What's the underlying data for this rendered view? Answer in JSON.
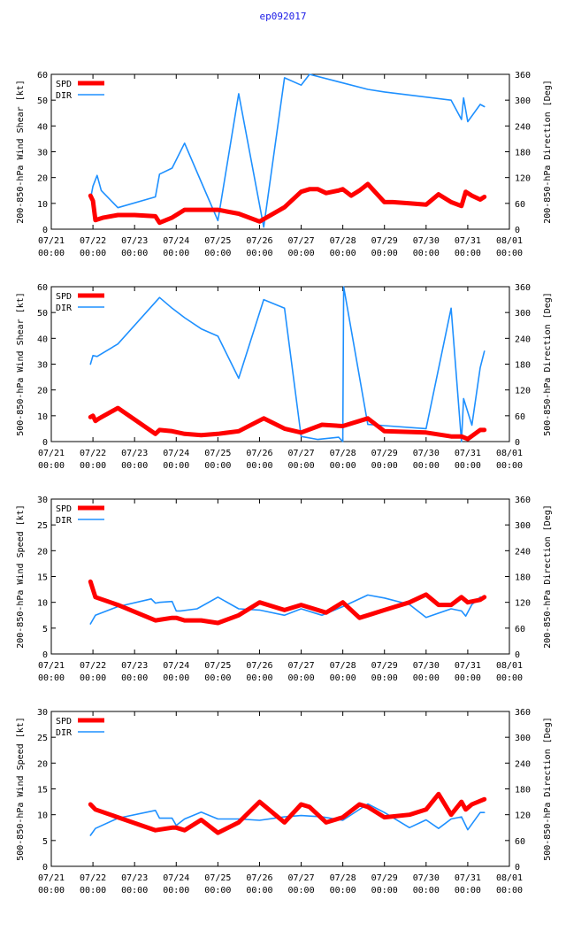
{
  "title": "ep092017",
  "colors": {
    "spd": "#ff0000",
    "dir": "#1e90ff",
    "title": "#1a1ae6",
    "axis": "#000000"
  },
  "chart_data": [
    {
      "type": "line",
      "ylabel": "200-850-hPa Wind Shear [kt]",
      "y2label": "200-850-hPa Direction [Deg]",
      "ylim": [
        0,
        60
      ],
      "yticks": [
        0,
        10,
        20,
        30,
        40,
        50,
        60
      ],
      "y2lim": [
        0,
        360
      ],
      "y2ticks": [
        0,
        60,
        120,
        180,
        240,
        300,
        360
      ],
      "xlim": [
        0,
        11
      ],
      "xticks": [
        {
          "date": "07/21",
          "time": "00:00"
        },
        {
          "date": "07/22",
          "time": "00:00"
        },
        {
          "date": "07/23",
          "time": "00:00"
        },
        {
          "date": "07/24",
          "time": "00:00"
        },
        {
          "date": "07/25",
          "time": "00:00"
        },
        {
          "date": "07/26",
          "time": "00:00"
        },
        {
          "date": "07/27",
          "time": "00:00"
        },
        {
          "date": "07/28",
          "time": "00:00"
        },
        {
          "date": "07/29",
          "time": "00:00"
        },
        {
          "date": "07/30",
          "time": "00:00"
        },
        {
          "date": "07/31",
          "time": "00:00"
        },
        {
          "date": "08/01",
          "time": "00:00"
        }
      ],
      "legend": [
        "SPD",
        "DIR"
      ],
      "series": [
        {
          "name": "SPD",
          "axis": "left",
          "x": [
            0.94,
            1.0,
            1.06,
            1.25,
            1.6,
            2.0,
            2.5,
            2.6,
            2.9,
            3.2,
            3.6,
            4.0,
            4.5,
            5.0,
            5.6,
            6.0,
            6.2,
            6.4,
            6.6,
            6.9,
            7.0,
            7.2,
            7.4,
            7.6,
            8.0,
            8.2,
            8.6,
            9.0,
            9.3,
            9.6,
            9.85,
            9.95,
            10.1,
            10.3,
            10.4
          ],
          "values": [
            13,
            11,
            3.5,
            4.5,
            5.5,
            5.5,
            5,
            2.5,
            4.5,
            7.5,
            7.5,
            7.5,
            6,
            3,
            8.5,
            14.5,
            15.5,
            15.5,
            14,
            15,
            15.5,
            13,
            15,
            17.5,
            10.5,
            10.5,
            10,
            9.5,
            13.5,
            10.5,
            9,
            14.5,
            13,
            11.5,
            12.5
          ]
        },
        {
          "name": "DIR",
          "axis": "right",
          "x": [
            0.94,
            1.0,
            1.1,
            1.2,
            1.6,
            2.5,
            2.6,
            2.9,
            3.2,
            3.6,
            4.0,
            4.5,
            5.1,
            5.6,
            6.0,
            6.2,
            7.0,
            7.6,
            8.0,
            9.6,
            9.85,
            9.9,
            10.0,
            10.3,
            10.4
          ],
          "values": [
            70,
            100,
            125,
            90,
            50,
            75,
            128,
            142,
            200,
            110,
            20,
            315,
            5,
            352,
            335,
            360,
            340,
            325,
            319,
            300,
            255,
            305,
            250,
            290,
            285
          ]
        }
      ]
    },
    {
      "type": "line",
      "ylabel": "500-850-hPa Wind Shear [kt]",
      "y2label": "500-850-hPa Direction [Deg]",
      "ylim": [
        0,
        60
      ],
      "yticks": [
        0,
        10,
        20,
        30,
        40,
        50,
        60
      ],
      "y2lim": [
        0,
        360
      ],
      "y2ticks": [
        0,
        60,
        120,
        180,
        240,
        300,
        360
      ],
      "xlim": [
        0,
        11
      ],
      "xticks": [
        {
          "date": "07/21",
          "time": "00:00"
        },
        {
          "date": "07/22",
          "time": "00:00"
        },
        {
          "date": "07/23",
          "time": "00:00"
        },
        {
          "date": "07/24",
          "time": "00:00"
        },
        {
          "date": "07/25",
          "time": "00:00"
        },
        {
          "date": "07/26",
          "time": "00:00"
        },
        {
          "date": "07/27",
          "time": "00:00"
        },
        {
          "date": "07/28",
          "time": "00:00"
        },
        {
          "date": "07/29",
          "time": "00:00"
        },
        {
          "date": "07/30",
          "time": "00:00"
        },
        {
          "date": "07/31",
          "time": "00:00"
        },
        {
          "date": "08/01",
          "time": "00:00"
        }
      ],
      "legend": [
        "SPD",
        "DIR"
      ],
      "series": [
        {
          "name": "SPD",
          "axis": "left",
          "x": [
            0.94,
            1.0,
            1.06,
            1.15,
            1.6,
            2.5,
            2.6,
            2.9,
            3.2,
            3.6,
            4.0,
            4.5,
            5.1,
            5.6,
            6.0,
            6.5,
            7.0,
            7.6,
            8.0,
            9.0,
            9.6,
            9.85,
            10.0,
            10.3,
            10.4
          ],
          "values": [
            9.5,
            10,
            8,
            9,
            13,
            3,
            4.5,
            4,
            3,
            2.5,
            3,
            4,
            9,
            5,
            3.5,
            6.5,
            6,
            9,
            4,
            3.5,
            2,
            2,
            1,
            4.5,
            4.5
          ]
        },
        {
          "name": "DIR",
          "axis": "right",
          "x": [
            0.94,
            1.0,
            1.1,
            1.6,
            2.6,
            2.9,
            3.2,
            3.6,
            4.0,
            4.5,
            5.1,
            5.6,
            6.0,
            6.4,
            6.9,
            7.0,
            7.02,
            7.6,
            8.0,
            9.0,
            9.6,
            9.85,
            9.9,
            10.1,
            10.3,
            10.4
          ],
          "values": [
            180,
            200,
            198,
            227,
            335,
            310,
            288,
            262,
            245,
            147,
            330,
            310,
            12,
            5,
            10,
            0,
            360,
            40,
            37,
            30,
            310,
            0,
            100,
            38,
            172,
            210
          ]
        }
      ]
    },
    {
      "type": "line",
      "ylabel": "200-850-hPa Wind Speed [kt]",
      "y2label": "200-850-hPa Direction [Deg]",
      "ylim": [
        0,
        30
      ],
      "yticks": [
        0,
        5,
        10,
        15,
        20,
        25,
        30
      ],
      "y2lim": [
        0,
        360
      ],
      "y2ticks": [
        0,
        60,
        120,
        180,
        240,
        300,
        360
      ],
      "xlim": [
        0,
        11
      ],
      "xticks": [
        {
          "date": "07/21",
          "time": "00:00"
        },
        {
          "date": "07/22",
          "time": "00:00"
        },
        {
          "date": "07/23",
          "time": "00:00"
        },
        {
          "date": "07/24",
          "time": "00:00"
        },
        {
          "date": "07/25",
          "time": "00:00"
        },
        {
          "date": "07/26",
          "time": "00:00"
        },
        {
          "date": "07/27",
          "time": "00:00"
        },
        {
          "date": "07/28",
          "time": "00:00"
        },
        {
          "date": "07/29",
          "time": "00:00"
        },
        {
          "date": "07/30",
          "time": "00:00"
        },
        {
          "date": "07/31",
          "time": "00:00"
        },
        {
          "date": "08/01",
          "time": "00:00"
        }
      ],
      "legend": [
        "SPD",
        "DIR"
      ],
      "series": [
        {
          "name": "SPD",
          "axis": "left",
          "x": [
            0.94,
            1.0,
            1.06,
            1.6,
            2.5,
            2.9,
            3.0,
            3.2,
            3.6,
            4.0,
            4.5,
            5.0,
            5.6,
            6.0,
            6.2,
            6.6,
            7.0,
            7.4,
            7.6,
            8.0,
            8.6,
            9.0,
            9.3,
            9.6,
            9.85,
            10.0,
            10.3,
            10.4
          ],
          "values": [
            14,
            12.5,
            11,
            9.5,
            6.5,
            7,
            7,
            6.5,
            6.5,
            6,
            7.5,
            10,
            8.5,
            9.5,
            9,
            8,
            10,
            7,
            7.5,
            8.5,
            10,
            11.5,
            9.5,
            9.5,
            11,
            10,
            10.5,
            11
          ]
        },
        {
          "name": "DIR",
          "axis": "right",
          "x": [
            0.94,
            1.0,
            1.06,
            1.6,
            2.4,
            2.5,
            2.6,
            2.9,
            3.0,
            3.1,
            3.5,
            4.0,
            4.5,
            5.0,
            5.6,
            6.0,
            6.5,
            7.0,
            7.6,
            8.0,
            8.6,
            9.0,
            9.6,
            9.85,
            9.95,
            10.1,
            10.3,
            10.4
          ],
          "values": [
            70,
            80,
            90,
            110,
            128,
            118,
            120,
            122,
            100,
            100,
            105,
            132,
            105,
            102,
            90,
            105,
            90,
            110,
            137,
            130,
            115,
            85,
            105,
            100,
            88,
            115,
            132,
            130
          ]
        }
      ]
    },
    {
      "type": "line",
      "ylabel": "500-850-hPa Wind Speed [kt]",
      "y2label": "500-850-hPa Direction [Deg]",
      "ylim": [
        0,
        30
      ],
      "yticks": [
        0,
        5,
        10,
        15,
        20,
        25,
        30
      ],
      "y2lim": [
        0,
        360
      ],
      "y2ticks": [
        0,
        60,
        120,
        180,
        240,
        300,
        360
      ],
      "xlim": [
        0,
        11
      ],
      "xticks": [
        {
          "date": "07/21",
          "time": "00:00"
        },
        {
          "date": "07/22",
          "time": "00:00"
        },
        {
          "date": "07/23",
          "time": "00:00"
        },
        {
          "date": "07/24",
          "time": "00:00"
        },
        {
          "date": "07/25",
          "time": "00:00"
        },
        {
          "date": "07/26",
          "time": "00:00"
        },
        {
          "date": "07/27",
          "time": "00:00"
        },
        {
          "date": "07/28",
          "time": "00:00"
        },
        {
          "date": "07/29",
          "time": "00:00"
        },
        {
          "date": "07/30",
          "time": "00:00"
        },
        {
          "date": "07/31",
          "time": "00:00"
        },
        {
          "date": "08/01",
          "time": "00:00"
        }
      ],
      "legend": [
        "SPD",
        "DIR"
      ],
      "series": [
        {
          "name": "SPD",
          "axis": "left",
          "x": [
            0.94,
            1.0,
            1.06,
            1.6,
            2.5,
            2.9,
            3.0,
            3.2,
            3.6,
            4.0,
            4.5,
            5.0,
            5.6,
            6.0,
            6.2,
            6.6,
            7.0,
            7.4,
            7.6,
            8.0,
            8.6,
            9.0,
            9.3,
            9.6,
            9.85,
            9.95,
            10.1,
            10.4
          ],
          "values": [
            12,
            11.5,
            11,
            9.5,
            7,
            7.5,
            7.5,
            7,
            9,
            6.5,
            8.5,
            12.5,
            8.5,
            12,
            11.5,
            8.5,
            9.5,
            12,
            11.5,
            9.5,
            10,
            11,
            14,
            10,
            12.5,
            11,
            12,
            13
          ]
        },
        {
          "name": "DIR",
          "axis": "right",
          "x": [
            0.94,
            1.0,
            1.06,
            1.6,
            2.5,
            2.6,
            2.9,
            3.0,
            3.2,
            3.6,
            4.0,
            4.5,
            5.0,
            5.6,
            6.0,
            6.5,
            7.0,
            7.6,
            8.0,
            8.6,
            9.0,
            9.3,
            9.6,
            9.85,
            9.9,
            10.0,
            10.3,
            10.4
          ],
          "values": [
            72,
            80,
            88,
            112,
            130,
            112,
            112,
            95,
            110,
            126,
            110,
            110,
            107,
            115,
            118,
            115,
            107,
            145,
            125,
            90,
            108,
            88,
            110,
            115,
            105,
            85,
            125,
            125
          ]
        }
      ]
    }
  ]
}
